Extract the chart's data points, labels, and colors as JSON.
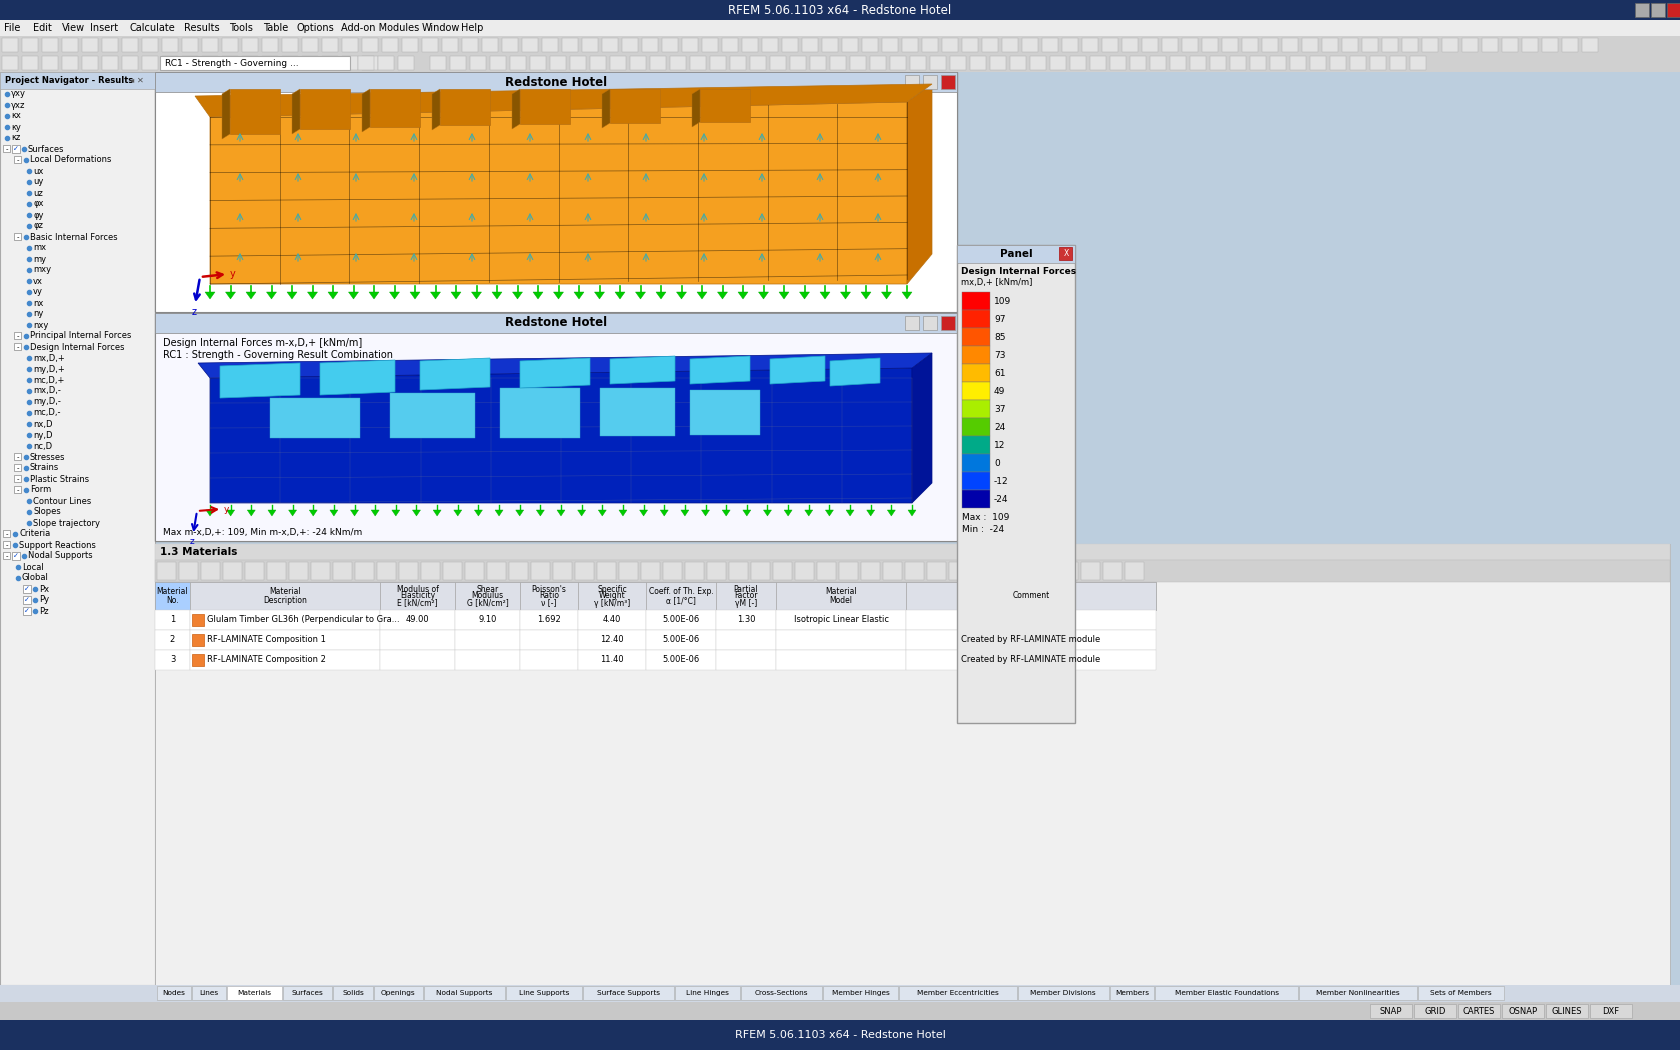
{
  "title": "RFEM 5.06.1103 x64 - Redstone Hotel",
  "menubar_items": [
    "File",
    "Edit",
    "View",
    "Insert",
    "Calculate",
    "Results",
    "Tools",
    "Table",
    "Options",
    "Add-on Modules",
    "Window",
    "Help"
  ],
  "panel_title": "Design Internal Forces",
  "panel_label": "mx,D,+ [kNm/m]",
  "panel_values": [
    109,
    97,
    85,
    73,
    61,
    49,
    37,
    24,
    12,
    0,
    -12,
    -24
  ],
  "panel_colors": [
    "#ff0000",
    "#ee2200",
    "#dd4400",
    "#cc7700",
    "#bbaa00",
    "#aacc00",
    "#88dd00",
    "#44cc44",
    "#00bbaa",
    "#0099dd",
    "#0055ff",
    "#0000cc"
  ],
  "panel_max": 109,
  "panel_min": -24,
  "top_window_title": "Redstone Hotel",
  "bottom_window_title": "Redstone Hotel",
  "bottom_label1": "Design Internal Forces m-x,D,+ [kNm/m]",
  "bottom_label2": "RC1 : Strength - Governing Result Combination",
  "bottom_status": "Max m-x,D,+: 109, Min m-x,D,+: -24 kNm/m",
  "nav_title": "Project Navigator - Results",
  "orange_color": "#f5a020",
  "orange_dark": "#b87010",
  "orange_roof": "#cc7700",
  "blue_dark": "#0000bb",
  "blue_mid": "#1144cc",
  "cyan_light": "#44ccee",
  "cyan_mid": "#22aacc",
  "green_support": "#00cc00",
  "tab_items": [
    "Nodes",
    "Lines",
    "Materials",
    "Surfaces",
    "Solids",
    "Openings",
    "Nodal Supports",
    "Line Supports",
    "Surface Supports",
    "Line Hinges",
    "Cross-Sections",
    "Member Hinges",
    "Member Eccentricities",
    "Member Divisions",
    "Members",
    "Member Elastic Foundations",
    "Member Nonlinearities",
    "Sets of Members"
  ],
  "statusbar_items": [
    "SNAP",
    "GRID",
    "CARTES",
    "OSNAP",
    "GLINES",
    "DXF"
  ]
}
